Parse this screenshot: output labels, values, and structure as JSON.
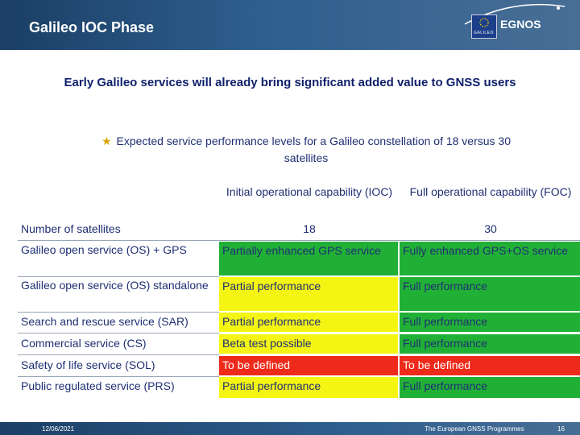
{
  "header": {
    "title": "Galileo IOC Phase",
    "logo_text": "EGNOS",
    "flag_label": "GALILEO"
  },
  "headline": "Early Galileo services will already bring significant added value to GNSS users",
  "bullet": "Expected service performance levels for a Galileo constellation of 18 versus 30 satellites",
  "table": {
    "col_headers": [
      "Initial operational capability (IOC)",
      "Full operational capability (FOC)"
    ],
    "rows": [
      {
        "label": "Number of satellites",
        "ioc": "18",
        "foc": "30"
      },
      {
        "label": "Galileo open service (OS) + GPS",
        "ioc": "Partially enhanced GPS service",
        "foc": "Fully enhanced GPS+OS service"
      },
      {
        "label": "Galileo open service (OS) standalone",
        "ioc": "Partial performance",
        "foc": "Full performance"
      },
      {
        "label": "Search and rescue service (SAR)",
        "ioc": "Partial performance",
        "foc": "Full performance"
      },
      {
        "label": "Commercial service (CS)",
        "ioc": "Beta test possible",
        "foc": "Full performance"
      },
      {
        "label": "Safety of life service (SOL)",
        "ioc": "To be defined",
        "foc": "To be defined"
      },
      {
        "label": "Public regulated service (PRS)",
        "ioc": "Partial performance",
        "foc": "Full performance"
      }
    ],
    "colors": {
      "green": "#21b036",
      "yellow": "#f5f514",
      "red": "#ee2a1a"
    }
  },
  "footer": {
    "date": "12/06/2021",
    "program": "The European GNSS Programmes",
    "page": "16"
  }
}
